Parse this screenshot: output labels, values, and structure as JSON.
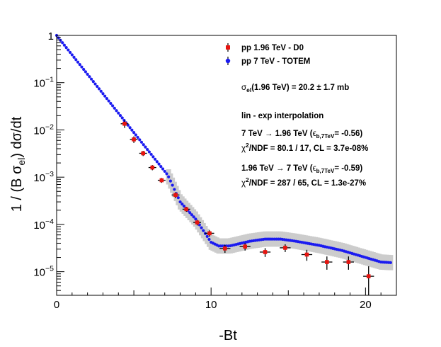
{
  "chart_data": {
    "type": "scatter",
    "xlabel": "-Bt",
    "ylabel_parts": [
      "1 / (B ",
      "σ",
      "el",
      ")  d",
      "σ",
      "/dt"
    ],
    "xlim": [
      0,
      22
    ],
    "ylim_log10": [
      -5.5,
      0
    ],
    "x_ticks": [
      {
        "value": 0,
        "label": "0"
      },
      {
        "value": 10,
        "label": "10"
      },
      {
        "value": 20,
        "label": "20"
      }
    ],
    "y_ticks": [
      {
        "exp": 0,
        "base": "1",
        "sup": ""
      },
      {
        "exp": -1,
        "base": "10",
        "sup": "−1"
      },
      {
        "exp": -2,
        "base": "10",
        "sup": "−2"
      },
      {
        "exp": -3,
        "base": "10",
        "sup": "−3"
      },
      {
        "exp": -4,
        "base": "10",
        "sup": "−4"
      },
      {
        "exp": -5,
        "base": "10",
        "sup": "−5"
      }
    ],
    "colors": {
      "d0": "#e8140f",
      "totem": "#1b1bf0",
      "band": "#cccccc",
      "error": "#000000"
    },
    "legend": [
      {
        "key": "d0",
        "label": "pp 1.96 TeV - D0"
      },
      {
        "key": "totem",
        "label": "pp 7 TeV - TOTEM"
      }
    ],
    "annotations": {
      "sigma": {
        "s": "σ",
        "sub": "el",
        "rest": "(1.96 TeV) = 20.2 ± 1.7 mb"
      },
      "interp": "lin - exp interpolation",
      "line7to196": {
        "a": "7 TeV ",
        "arrow": "→",
        "b": " 1.96 TeV (",
        "eps": "ϵ",
        "sub": "b,7TeV",
        "c": "= -0.56)"
      },
      "chi1": {
        "chi": "χ",
        "sup": "2",
        "rest": "/NDF = 80.1 / 17,  CL = 3.7e-08%"
      },
      "line196to7": {
        "a": "1.96 TeV ",
        "arrow": "→",
        "b": " 7 TeV  (",
        "eps": "ϵ",
        "sub": "b,7TeV",
        "c": "= -0.59)"
      },
      "chi2": {
        "chi": "χ",
        "sup": "2",
        "rest": "/NDF = 287 / 65,  CL = 1.3e-27%"
      }
    },
    "series": [
      {
        "name": "pp 1.96 TeV - D0",
        "key": "d0",
        "x": [
          4.4,
          5.0,
          5.6,
          6.2,
          6.8,
          7.7,
          8.4,
          9.1,
          9.9,
          10.9,
          12.2,
          13.5,
          14.8,
          16.2,
          17.5,
          18.9,
          20.2
        ],
        "y": [
          0.0135,
          0.0063,
          0.0032,
          0.0016,
          0.00086,
          0.00042,
          0.00021,
          0.00011,
          6.5e-05,
          3.1e-05,
          3.4e-05,
          2.6e-05,
          3.2e-05,
          2.3e-05,
          1.6e-05,
          1.6e-05,
          8e-06
        ],
        "yerr_lo": [
          0.0025,
          0.001,
          0.0004,
          0.0002,
          0.0001,
          6e-05,
          2.5e-05,
          1.5e-05,
          1e-05,
          6e-06,
          6e-06,
          5.5e-06,
          6e-06,
          6e-06,
          5e-06,
          5e-06,
          5.5e-06
        ],
        "yerr_hi": [
          0.0025,
          0.001,
          0.0004,
          0.0002,
          0.0001,
          6e-05,
          2.5e-05,
          1.5e-05,
          1e-05,
          6e-06,
          6e-06,
          5.5e-06,
          6e-06,
          6e-06,
          5e-06,
          5e-06,
          5e-06
        ],
        "xerr": [
          0.25,
          0.25,
          0.25,
          0.25,
          0.25,
          0.25,
          0.25,
          0.25,
          0.3,
          0.35,
          0.35,
          0.35,
          0.35,
          0.35,
          0.35,
          0.35,
          0.35
        ]
      },
      {
        "name": "pp 7 TeV - TOTEM",
        "key": "totem",
        "band_rel": 1.45,
        "knots_x": [
          0,
          7.2,
          8.0,
          9.0,
          10.0,
          10.5,
          11.2,
          12.5,
          13.5,
          14.5,
          15.5,
          17.0,
          18.5,
          20.0,
          21.0,
          21.7
        ],
        "knots_y": [
          1.0,
          0.0011,
          0.0003,
          0.00013,
          4.2e-05,
          3.5e-05,
          3.5e-05,
          4.4e-05,
          4.9e-05,
          4.9e-05,
          4.4e-05,
          3.6e-05,
          2.8e-05,
          2e-05,
          1.6e-05,
          1.55e-05
        ],
        "point_spacing": 0.125
      }
    ]
  }
}
